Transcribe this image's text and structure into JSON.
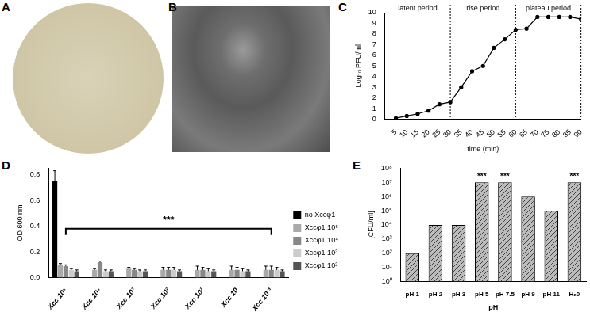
{
  "images": [
    {
      "panel": "A"
    },
    {
      "panel": "B"
    }
  ],
  "chart_data": [
    {
      "panel": "C",
      "type": "line",
      "x": [
        5,
        10,
        15,
        20,
        25,
        30,
        35,
        40,
        45,
        50,
        55,
        60,
        65,
        70,
        75,
        80,
        85,
        90
      ],
      "values": [
        0.1,
        0.3,
        0.5,
        0.8,
        1.4,
        1.6,
        3.0,
        4.5,
        5.0,
        6.7,
        7.5,
        8.4,
        8.5,
        9.6,
        9.6,
        9.6,
        9.6,
        9.4
      ],
      "color": "#000000",
      "marker": "circle",
      "xlim": [
        0,
        90
      ],
      "xticks": [
        5,
        10,
        15,
        20,
        25,
        30,
        35,
        40,
        45,
        50,
        55,
        60,
        65,
        70,
        75,
        80,
        85,
        90
      ],
      "ylim": [
        0,
        10
      ],
      "yticks": [
        0,
        1,
        2,
        3,
        4,
        5,
        6,
        7,
        8,
        9,
        10
      ],
      "x_label": "time (min)",
      "y_label": "Log₁₀ PFU/ml",
      "grid": false,
      "phases": [
        {
          "text": "latent period",
          "from": 0,
          "to": 30
        },
        {
          "text": "rise period",
          "from": 30,
          "to": 60
        },
        {
          "text": "plateau period",
          "from": 60,
          "to": 90
        }
      ]
    },
    {
      "panel": "D",
      "type": "bar",
      "categories": [
        "Xcc 10⁵",
        "Xcc 10⁴",
        "Xcc 10³",
        "Xcc 10²",
        "Xcc 10¹",
        "Xcc 10",
        "Xcc 10⁻¹"
      ],
      "series": [
        {
          "name": "no Xccφ1",
          "color": "#000000",
          "values": [
            0.75,
            null,
            null,
            null,
            null,
            null,
            null
          ],
          "errors": [
            0.08,
            null,
            null,
            null,
            null,
            null,
            null
          ]
        },
        {
          "name": "Xccφ1 10⁵",
          "color": "#aaaaaa",
          "values": [
            0.1,
            0.06,
            0.07,
            0.06,
            0.06,
            0.06,
            0.06
          ],
          "errors": [
            0.01,
            0.01,
            0.01,
            0.02,
            0.03,
            0.03,
            0.03
          ]
        },
        {
          "name": "Xccφ1 10⁴",
          "color": "#888888",
          "values": [
            0.09,
            0.12,
            0.06,
            0.06,
            0.06,
            0.06,
            0.06
          ],
          "errors": [
            0.01,
            0.01,
            0.01,
            0.02,
            0.02,
            0.02,
            0.03
          ]
        },
        {
          "name": "Xccφ1 10³",
          "color": "#cccccc",
          "values": [
            0.06,
            0.05,
            0.05,
            0.06,
            0.05,
            0.05,
            0.06
          ],
          "errors": [
            0.01,
            0.01,
            0.01,
            0.02,
            0.02,
            0.02,
            0.02
          ]
        },
        {
          "name": "Xccφ1 10²",
          "color": "#555555",
          "values": [
            0.05,
            0.05,
            0.05,
            0.05,
            0.05,
            0.05,
            0.05
          ],
          "errors": [
            0.01,
            0.01,
            0.01,
            0.01,
            0.01,
            0.01,
            0.01
          ]
        }
      ],
      "ylim": [
        0,
        0.85
      ],
      "yticks": [
        {
          "value": 0,
          "label": "0.0"
        },
        0.2,
        0.4,
        0.6,
        0.8
      ],
      "y_label": "OD 600 nm",
      "grid": false,
      "legend": "right",
      "significance": {
        "label": "***",
        "from": "Xcc 10⁵",
        "to": "Xcc 10⁻¹",
        "y": 0.38
      }
    },
    {
      "panel": "E",
      "type": "bar",
      "log": "y",
      "categories": [
        "pH 1",
        "pH 2",
        "pH 3",
        "pH 5",
        "pH 7.5",
        "pH 9",
        "pH 11",
        "H₂0"
      ],
      "values": [
        100,
        10000,
        10000,
        10000000,
        10000000,
        1000000,
        100000,
        10000000
      ],
      "color": "#bbbbbb",
      "ylim": [
        1,
        100000000
      ],
      "yticks": [
        {
          "value": 1,
          "label": "10⁰"
        },
        {
          "value": 10,
          "label": "10¹"
        },
        {
          "value": 100,
          "label": "10²"
        },
        {
          "value": 1000,
          "label": "10³"
        },
        {
          "value": 10000,
          "label": "10⁴"
        },
        {
          "value": 100000,
          "label": "10⁵"
        },
        {
          "value": 1000000,
          "label": "10⁶"
        },
        {
          "value": 10000000,
          "label": "10⁷"
        },
        {
          "value": 100000000,
          "label": "10⁸"
        }
      ],
      "x_label": "pH",
      "y_label": "[CFU/ml]",
      "grid": false,
      "significance": [
        {
          "category": "pH 5",
          "label": "***"
        },
        {
          "category": "pH 7.5",
          "label": "***"
        },
        {
          "category": "H₂0",
          "label": "***"
        }
      ]
    }
  ]
}
